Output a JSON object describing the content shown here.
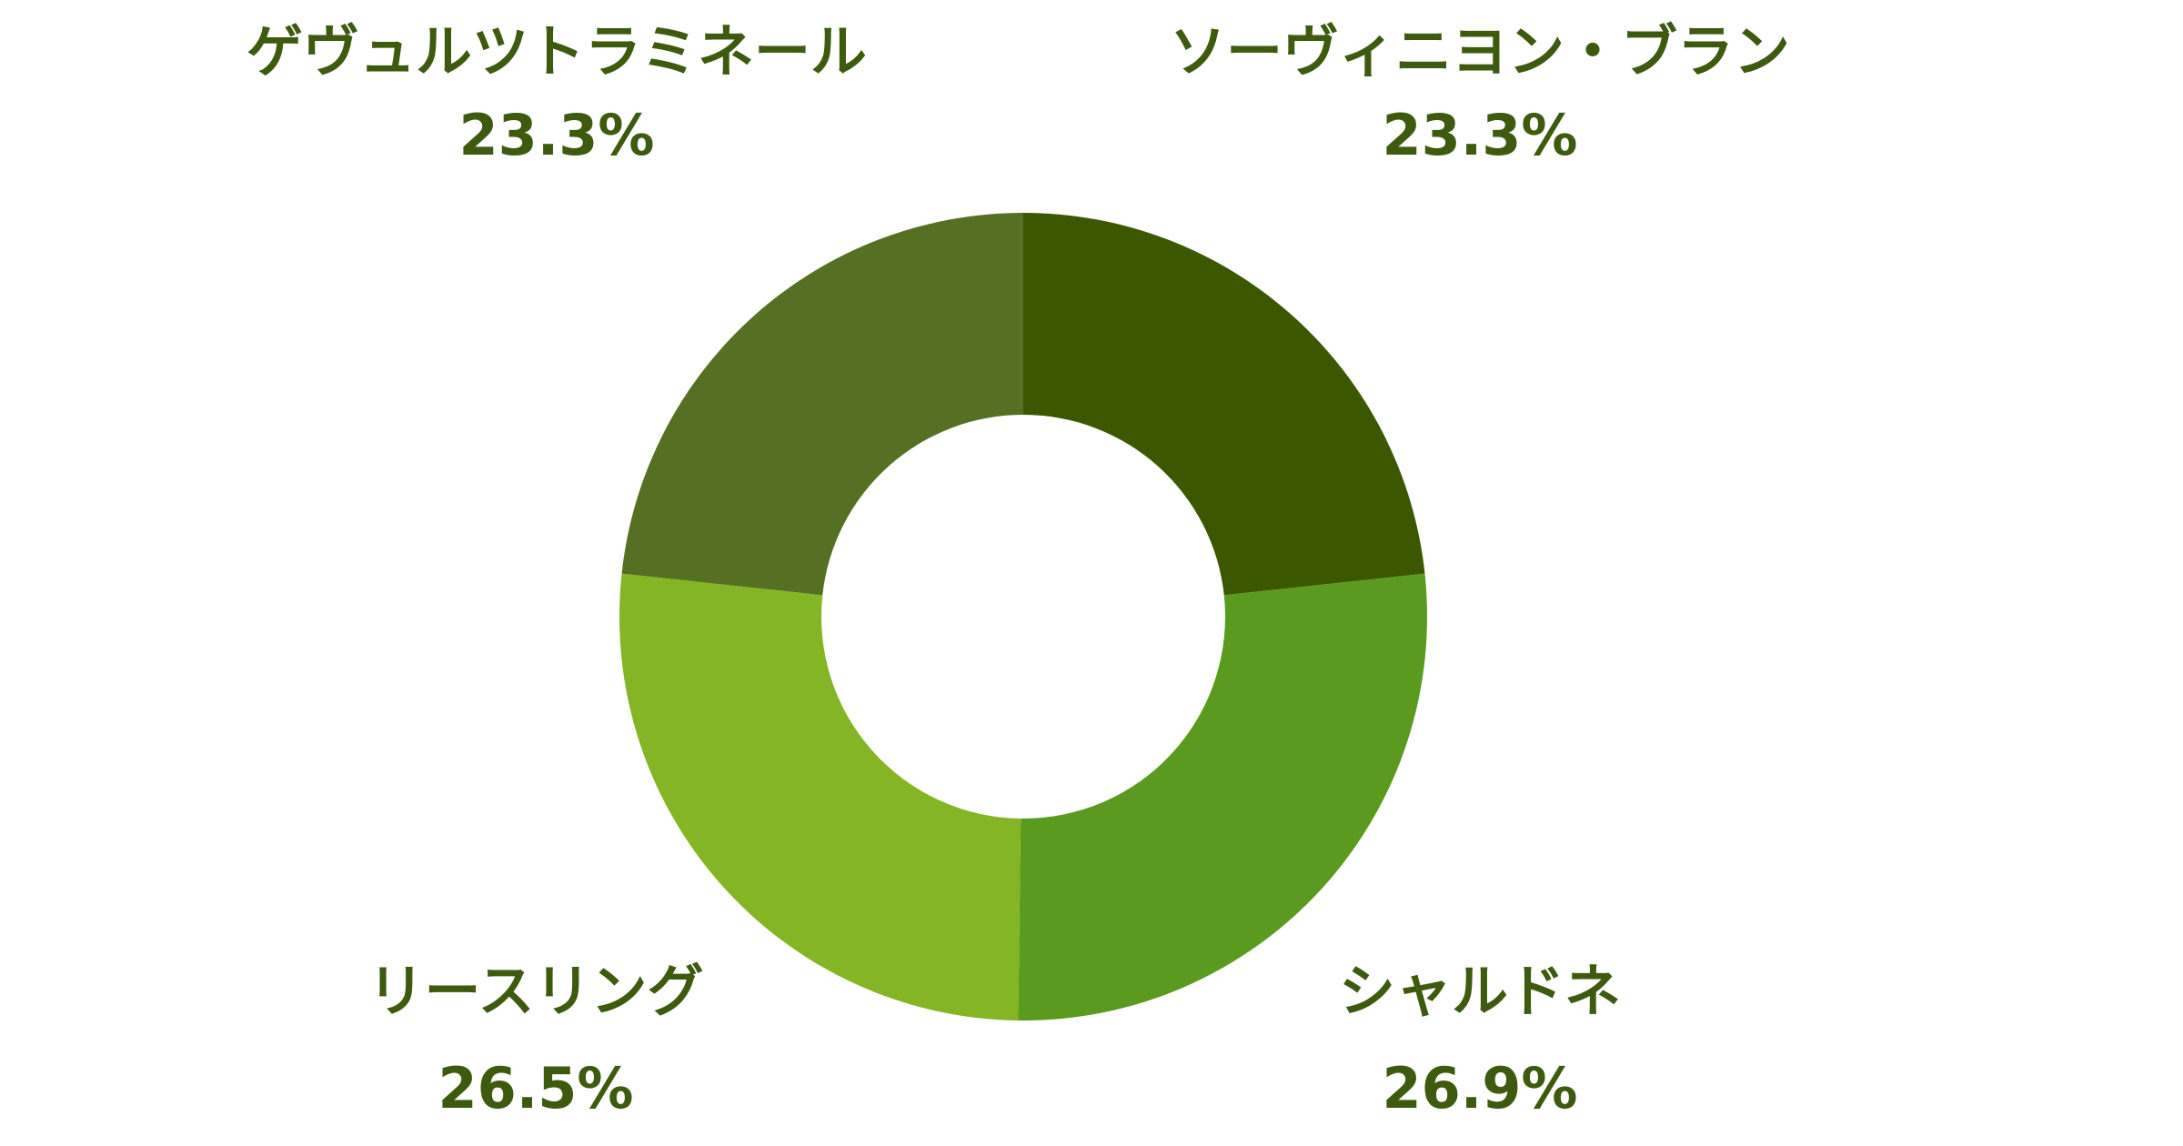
{
  "chart_data": {
    "type": "donut",
    "categories": [
      "ソーヴィニヨン・ブラン",
      "シャルドネ",
      "リースリング",
      "ゲヴュルツトラミネール"
    ],
    "values": [
      23.3,
      26.9,
      26.5,
      23.3
    ],
    "value_labels": [
      "23.3%",
      "26.9%",
      "26.5%",
      "23.3%"
    ],
    "colors": [
      "#3b5700",
      "#5a9a1e",
      "#84b524",
      "#557022"
    ]
  }
}
